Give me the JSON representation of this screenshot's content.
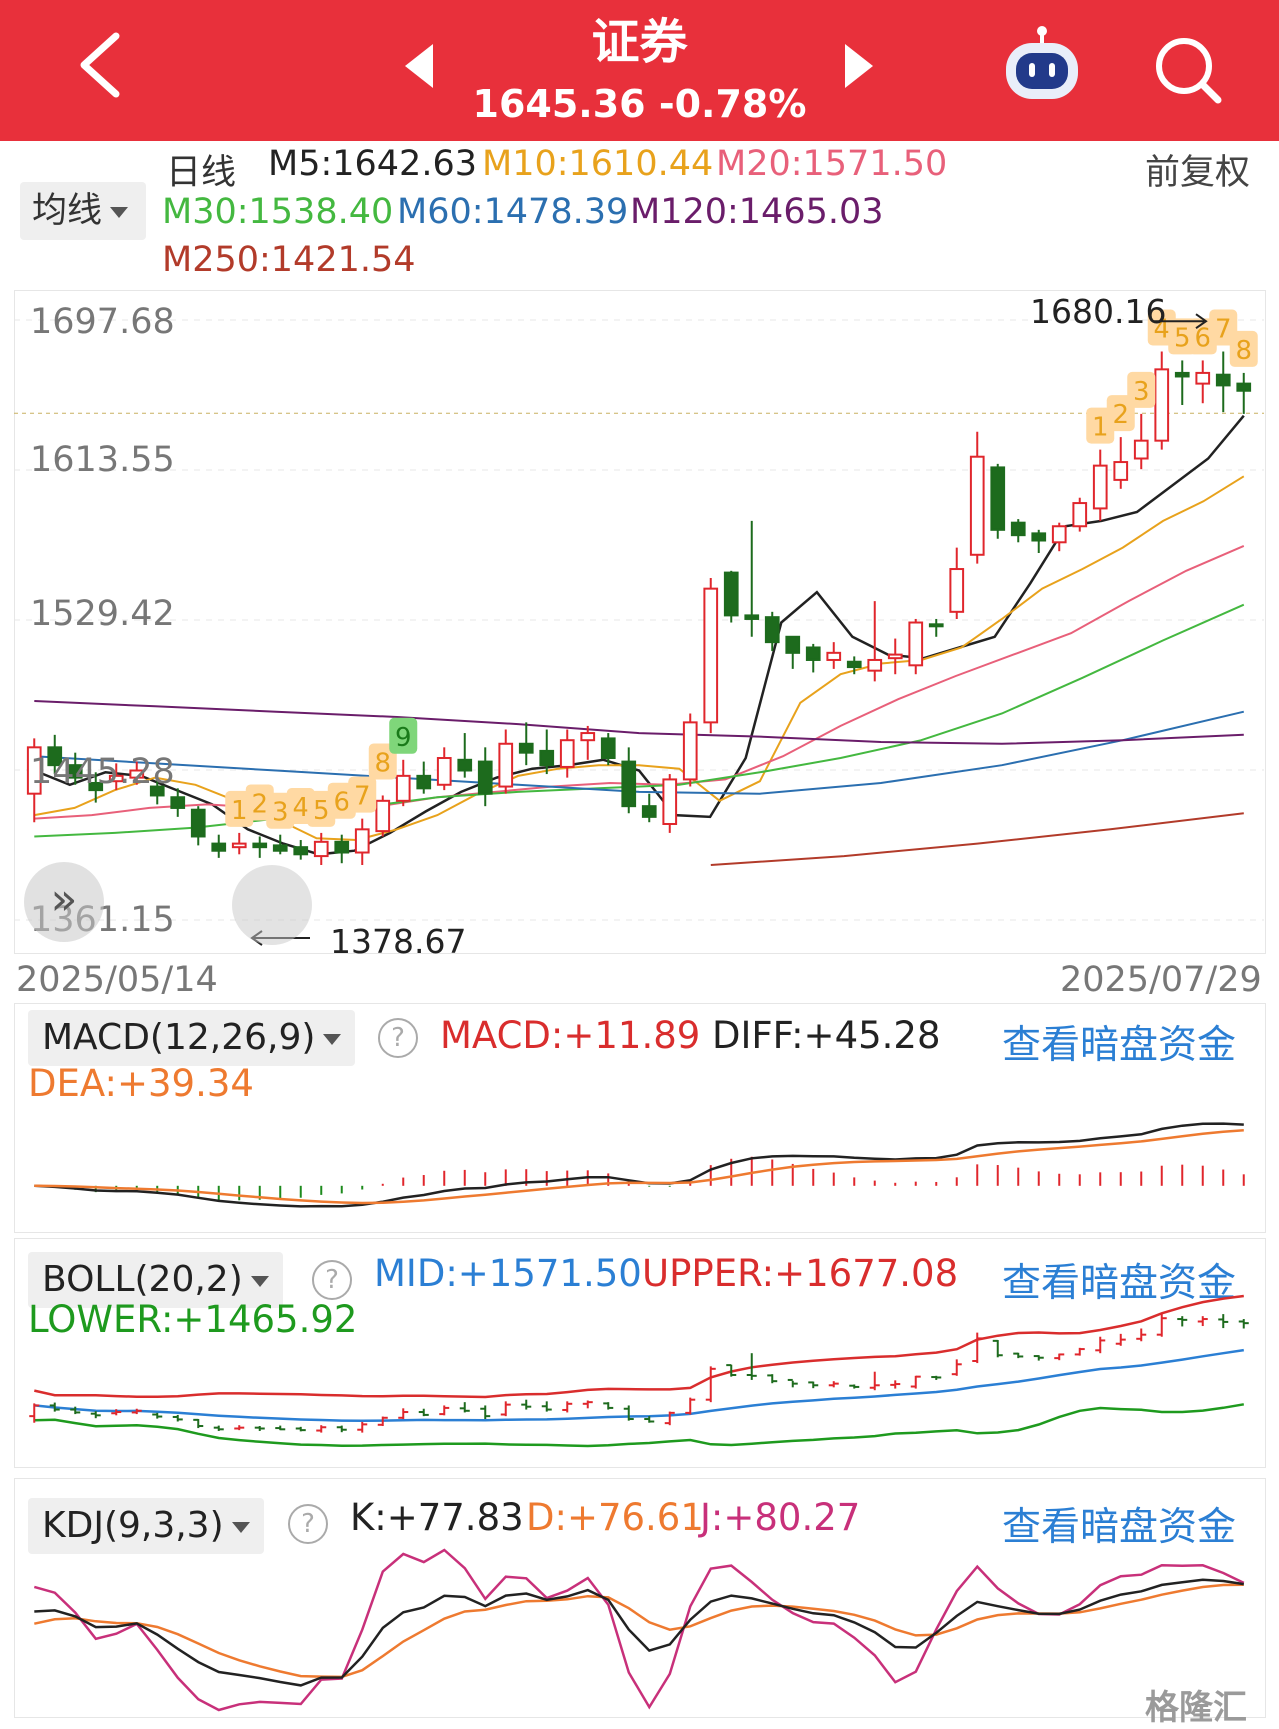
{
  "header": {
    "title": "证券",
    "price": "1645.36",
    "change": "-0.78%"
  },
  "ma": {
    "period": "日线",
    "m5": "M5:1642.63",
    "m10": "M10:1610.44",
    "m20": "M20:1571.50",
    "m30": "M30:1538.40",
    "m60": "M60:1478.39",
    "m120": "M120:1465.03",
    "m250": "M250:1421.54",
    "selector": "均线",
    "adjust": "前复权",
    "colors": {
      "m5": "#222222",
      "m10": "#e8a21c",
      "m20": "#e8607a",
      "m30": "#44b840",
      "m60": "#2b6fb0",
      "m120": "#6a1d6a",
      "m250": "#b23b2a"
    }
  },
  "kchart": {
    "y_ticks": [
      "1697.68",
      "1613.55",
      "1529.42",
      "1445.28",
      "1361.15"
    ],
    "start_date": "2025/05/14",
    "end_date": "2025/07/29",
    "high_label": "1680.16",
    "low_label": "1378.67",
    "left_seq": [
      "1",
      "2",
      "3",
      "4",
      "5",
      "6",
      "7",
      "8",
      "9"
    ],
    "right_seq": [
      "1",
      "2",
      "3",
      "4",
      "5",
      "6",
      "7",
      "8"
    ]
  },
  "macd": {
    "selector": "MACD(12,26,9)",
    "macd": "MACD:+11.89",
    "diff": "DIFF:+45.28",
    "dea": "DEA:+39.34",
    "link": "查看暗盘资金"
  },
  "boll": {
    "selector": "BOLL(20,2)",
    "mid": "MID:+1571.50",
    "upper": "UPPER:+1677.08",
    "lower": "LOWER:+1465.92",
    "link": "查看暗盘资金"
  },
  "kdj": {
    "selector": "KDJ(9,3,3)",
    "k": "K:+77.83",
    "d": "D:+76.61",
    "j": "J:+80.27",
    "link": "查看暗盘资金"
  },
  "watermark": "格隆汇",
  "chart_data": {
    "type": "candlestick",
    "x_range": [
      "2025/05/14",
      "2025/07/29"
    ],
    "ylim": [
      1361.15,
      1697.68
    ],
    "candles": [
      [
        1432,
        1458,
        1416,
        1463
      ],
      [
        1458,
        1448,
        1443,
        1465
      ],
      [
        1448,
        1441,
        1437,
        1455
      ],
      [
        1438,
        1434,
        1427,
        1444
      ],
      [
        1439,
        1442,
        1434,
        1449
      ],
      [
        1441,
        1445,
        1437,
        1450
      ],
      [
        1436,
        1431,
        1426,
        1440
      ],
      [
        1430,
        1424,
        1419,
        1435
      ],
      [
        1423,
        1408,
        1403,
        1425
      ],
      [
        1404,
        1400,
        1396,
        1409
      ],
      [
        1402,
        1404,
        1398,
        1410
      ],
      [
        1404,
        1402,
        1396,
        1408
      ],
      [
        1403,
        1400,
        1398,
        1409
      ],
      [
        1402,
        1398,
        1395,
        1406
      ],
      [
        1397,
        1405,
        1392,
        1410
      ],
      [
        1405,
        1399,
        1393,
        1409
      ],
      [
        1399,
        1412,
        1392,
        1418
      ],
      [
        1411,
        1428,
        1408,
        1431
      ],
      [
        1428,
        1442,
        1425,
        1451
      ],
      [
        1442,
        1435,
        1432,
        1450
      ],
      [
        1437,
        1452,
        1434,
        1458
      ],
      [
        1451,
        1445,
        1441,
        1466
      ],
      [
        1450,
        1432,
        1425,
        1458
      ],
      [
        1436,
        1460,
        1432,
        1468
      ],
      [
        1460,
        1455,
        1448,
        1472
      ],
      [
        1456,
        1448,
        1443,
        1468
      ],
      [
        1447,
        1462,
        1441,
        1468
      ],
      [
        1462,
        1466,
        1451,
        1470
      ],
      [
        1463,
        1452,
        1448,
        1466
      ],
      [
        1450,
        1425,
        1421,
        1458
      ],
      [
        1425,
        1419,
        1416,
        1432
      ],
      [
        1415,
        1440,
        1410,
        1443
      ],
      [
        1440,
        1472,
        1436,
        1477
      ],
      [
        1472,
        1547,
        1466,
        1553
      ],
      [
        1556,
        1532,
        1528,
        1557
      ],
      [
        1532,
        1530,
        1520,
        1585
      ],
      [
        1531,
        1517,
        1512,
        1534
      ],
      [
        1520,
        1511,
        1502,
        1518
      ],
      [
        1514,
        1507,
        1500,
        1516
      ],
      [
        1507,
        1511,
        1502,
        1517
      ],
      [
        1506,
        1503,
        1499,
        1509
      ],
      [
        1501,
        1507,
        1495,
        1540
      ],
      [
        1508,
        1510,
        1499,
        1519
      ],
      [
        1504,
        1528,
        1499,
        1530
      ],
      [
        1527,
        1526,
        1520,
        1530
      ],
      [
        1534,
        1558,
        1530,
        1570
      ],
      [
        1566,
        1621,
        1561,
        1635
      ],
      [
        1615,
        1580,
        1575,
        1617
      ],
      [
        1584,
        1577,
        1573,
        1586
      ],
      [
        1578,
        1574,
        1567,
        1580
      ],
      [
        1573,
        1582,
        1568,
        1584
      ],
      [
        1582,
        1595,
        1579,
        1598
      ],
      [
        1592,
        1616,
        1585,
        1625
      ],
      [
        1608,
        1618,
        1603,
        1632
      ],
      [
        1620,
        1630,
        1614,
        1645
      ],
      [
        1630,
        1670,
        1625,
        1680
      ],
      [
        1668,
        1666,
        1650,
        1675
      ],
      [
        1662,
        1668,
        1651,
        1675
      ],
      [
        1667,
        1661,
        1646,
        1680
      ],
      [
        1662,
        1658,
        1645,
        1668
      ]
    ],
    "ma_lines": {
      "M5": [
        1445,
        1437,
        1444,
        1442,
        1434,
        1426,
        1412,
        1404,
        1398,
        1400,
        1410,
        1422,
        1433,
        1441,
        1446,
        1448,
        1451,
        1445,
        1420,
        1419,
        1452,
        1528,
        1545,
        1520,
        1510,
        1508,
        1514,
        1520,
        1550,
        1582,
        1585,
        1590,
        1605,
        1620,
        1644
      ],
      "M10": [
        1420,
        1424,
        1434,
        1441,
        1437,
        1428,
        1418,
        1407,
        1406,
        1412,
        1420,
        1432,
        1442,
        1446,
        1448,
        1448,
        1446,
        1428,
        1439,
        1483,
        1499,
        1505,
        1507,
        1514,
        1530,
        1547,
        1558,
        1570,
        1585,
        1596,
        1610
      ],
      "M20": [
        1418,
        1420,
        1424,
        1426,
        1424,
        1423,
        1425,
        1430,
        1433,
        1436,
        1438,
        1437,
        1440,
        1453,
        1470,
        1485,
        1498,
        1510,
        1522,
        1540,
        1557,
        1571
      ],
      "M30": [
        1408,
        1410,
        1413,
        1418,
        1424,
        1430,
        1433,
        1435,
        1437,
        1444,
        1452,
        1462,
        1477,
        1497,
        1518,
        1538
      ],
      "M60": [
        1453,
        1449,
        1445,
        1441,
        1437,
        1433,
        1432,
        1438,
        1448,
        1462,
        1478
      ],
      "M120": [
        1484,
        1481,
        1478,
        1475,
        1471,
        1466,
        1464,
        1461,
        1460,
        1462,
        1465
      ],
      "M250": [
        1392,
        1397,
        1404,
        1412,
        1421
      ]
    }
  }
}
